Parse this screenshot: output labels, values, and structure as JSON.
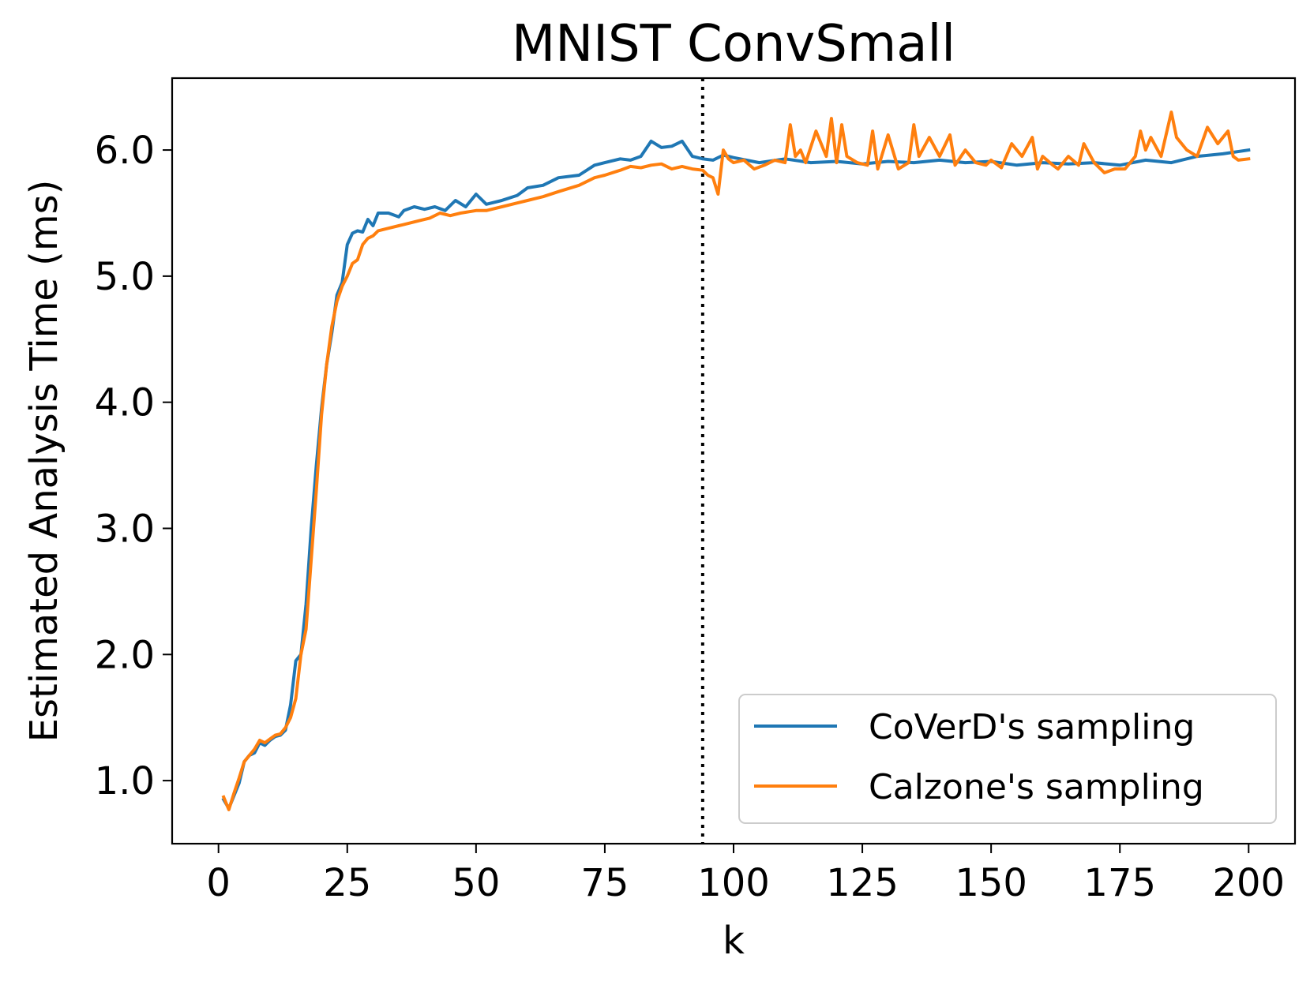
{
  "chart_data": {
    "type": "line",
    "title": "MNIST ConvSmall",
    "xlabel": "k",
    "ylabel": "Estimated Analysis Time (ms)",
    "xlim": [
      -9,
      209
    ],
    "ylim": [
      0.5,
      6.57
    ],
    "xticks": [
      0,
      25,
      50,
      75,
      100,
      125,
      150,
      175,
      200
    ],
    "yticks": [
      1.0,
      2.0,
      3.0,
      4.0,
      5.0,
      6.0
    ],
    "xtick_labels": [
      "0",
      "25",
      "50",
      "75",
      "100",
      "125",
      "150",
      "175",
      "200"
    ],
    "ytick_labels": [
      "1.0",
      "2.0",
      "3.0",
      "4.0",
      "5.0",
      "6.0"
    ],
    "vline": {
      "x": 94,
      "style": "dotted",
      "color": "#000000"
    },
    "legend_position": "lower-right",
    "series": [
      {
        "name": "CoVerD's sampling",
        "color": "#1f77b4",
        "anchors": [
          [
            1,
            0.85
          ],
          [
            2,
            0.78
          ],
          [
            3,
            0.88
          ],
          [
            4,
            0.98
          ],
          [
            5,
            1.15
          ],
          [
            6,
            1.2
          ],
          [
            7,
            1.22
          ],
          [
            8,
            1.3
          ],
          [
            9,
            1.28
          ],
          [
            10,
            1.32
          ],
          [
            11,
            1.35
          ],
          [
            12,
            1.36
          ],
          [
            13,
            1.4
          ],
          [
            14,
            1.6
          ],
          [
            15,
            1.95
          ],
          [
            16,
            2.0
          ],
          [
            17,
            2.4
          ],
          [
            18,
            3.0
          ],
          [
            19,
            3.5
          ],
          [
            20,
            3.95
          ],
          [
            21,
            4.3
          ],
          [
            22,
            4.55
          ],
          [
            23,
            4.85
          ],
          [
            24,
            4.95
          ],
          [
            25,
            5.25
          ],
          [
            26,
            5.34
          ],
          [
            27,
            5.36
          ],
          [
            28,
            5.35
          ],
          [
            29,
            5.45
          ],
          [
            30,
            5.4
          ],
          [
            31,
            5.5
          ],
          [
            33,
            5.5
          ],
          [
            35,
            5.47
          ],
          [
            36,
            5.52
          ],
          [
            38,
            5.55
          ],
          [
            40,
            5.53
          ],
          [
            42,
            5.55
          ],
          [
            44,
            5.52
          ],
          [
            46,
            5.6
          ],
          [
            48,
            5.55
          ],
          [
            50,
            5.65
          ],
          [
            52,
            5.57
          ],
          [
            55,
            5.6
          ],
          [
            58,
            5.64
          ],
          [
            60,
            5.7
          ],
          [
            63,
            5.72
          ],
          [
            66,
            5.78
          ],
          [
            70,
            5.8
          ],
          [
            73,
            5.88
          ],
          [
            75,
            5.9
          ],
          [
            78,
            5.93
          ],
          [
            80,
            5.92
          ],
          [
            82,
            5.95
          ],
          [
            84,
            6.07
          ],
          [
            86,
            6.02
          ],
          [
            88,
            6.03
          ],
          [
            90,
            6.07
          ],
          [
            92,
            5.95
          ],
          [
            94,
            5.93
          ],
          [
            96,
            5.92
          ],
          [
            98,
            5.96
          ],
          [
            100,
            5.94
          ],
          [
            105,
            5.9
          ],
          [
            110,
            5.93
          ],
          [
            115,
            5.9
          ],
          [
            120,
            5.91
          ],
          [
            125,
            5.89
          ],
          [
            130,
            5.91
          ],
          [
            135,
            5.9
          ],
          [
            140,
            5.92
          ],
          [
            145,
            5.9
          ],
          [
            150,
            5.91
          ],
          [
            155,
            5.88
          ],
          [
            160,
            5.9
          ],
          [
            165,
            5.89
          ],
          [
            170,
            5.9
          ],
          [
            175,
            5.88
          ],
          [
            180,
            5.92
          ],
          [
            185,
            5.9
          ],
          [
            190,
            5.95
          ],
          [
            195,
            5.97
          ],
          [
            200,
            6.0
          ]
        ]
      },
      {
        "name": "Calzone's sampling",
        "color": "#ff7f0e",
        "anchors": [
          [
            1,
            0.87
          ],
          [
            2,
            0.77
          ],
          [
            3,
            0.9
          ],
          [
            4,
            1.02
          ],
          [
            5,
            1.15
          ],
          [
            6,
            1.2
          ],
          [
            7,
            1.25
          ],
          [
            8,
            1.32
          ],
          [
            9,
            1.3
          ],
          [
            10,
            1.33
          ],
          [
            11,
            1.36
          ],
          [
            12,
            1.37
          ],
          [
            13,
            1.42
          ],
          [
            14,
            1.5
          ],
          [
            15,
            1.65
          ],
          [
            16,
            2.0
          ],
          [
            17,
            2.2
          ],
          [
            18,
            2.75
          ],
          [
            19,
            3.3
          ],
          [
            20,
            3.9
          ],
          [
            21,
            4.3
          ],
          [
            22,
            4.6
          ],
          [
            23,
            4.8
          ],
          [
            24,
            4.92
          ],
          [
            25,
            5.0
          ],
          [
            26,
            5.1
          ],
          [
            27,
            5.13
          ],
          [
            28,
            5.25
          ],
          [
            29,
            5.3
          ],
          [
            30,
            5.32
          ],
          [
            31,
            5.36
          ],
          [
            33,
            5.38
          ],
          [
            35,
            5.4
          ],
          [
            37,
            5.42
          ],
          [
            39,
            5.44
          ],
          [
            41,
            5.46
          ],
          [
            43,
            5.5
          ],
          [
            45,
            5.48
          ],
          [
            47,
            5.5
          ],
          [
            50,
            5.52
          ],
          [
            52,
            5.52
          ],
          [
            55,
            5.55
          ],
          [
            58,
            5.58
          ],
          [
            60,
            5.6
          ],
          [
            63,
            5.63
          ],
          [
            66,
            5.67
          ],
          [
            70,
            5.72
          ],
          [
            73,
            5.78
          ],
          [
            75,
            5.8
          ],
          [
            78,
            5.84
          ],
          [
            80,
            5.87
          ],
          [
            82,
            5.86
          ],
          [
            84,
            5.88
          ],
          [
            86,
            5.89
          ],
          [
            88,
            5.85
          ],
          [
            90,
            5.87
          ],
          [
            92,
            5.85
          ],
          [
            94,
            5.84
          ],
          [
            95,
            5.8
          ],
          [
            96,
            5.78
          ],
          [
            97,
            5.65
          ],
          [
            98,
            6.0
          ],
          [
            99,
            5.93
          ],
          [
            100,
            5.9
          ],
          [
            102,
            5.92
          ],
          [
            104,
            5.85
          ],
          [
            106,
            5.88
          ],
          [
            108,
            5.92
          ],
          [
            110,
            5.9
          ],
          [
            111,
            6.2
          ],
          [
            112,
            5.95
          ],
          [
            113,
            6.0
          ],
          [
            114,
            5.9
          ],
          [
            116,
            6.15
          ],
          [
            118,
            5.95
          ],
          [
            119,
            6.25
          ],
          [
            120,
            5.9
          ],
          [
            121,
            6.2
          ],
          [
            122,
            5.95
          ],
          [
            124,
            5.9
          ],
          [
            126,
            5.88
          ],
          [
            127,
            6.15
          ],
          [
            128,
            5.85
          ],
          [
            130,
            6.12
          ],
          [
            132,
            5.85
          ],
          [
            134,
            5.9
          ],
          [
            135,
            6.2
          ],
          [
            136,
            5.95
          ],
          [
            138,
            6.1
          ],
          [
            140,
            5.95
          ],
          [
            142,
            6.12
          ],
          [
            143,
            5.88
          ],
          [
            145,
            6.0
          ],
          [
            147,
            5.9
          ],
          [
            149,
            5.88
          ],
          [
            150,
            5.92
          ],
          [
            152,
            5.86
          ],
          [
            154,
            6.05
          ],
          [
            156,
            5.95
          ],
          [
            158,
            6.1
          ],
          [
            159,
            5.85
          ],
          [
            160,
            5.95
          ],
          [
            162,
            5.88
          ],
          [
            163,
            5.85
          ],
          [
            165,
            5.95
          ],
          [
            167,
            5.88
          ],
          [
            168,
            6.05
          ],
          [
            170,
            5.9
          ],
          [
            172,
            5.82
          ],
          [
            174,
            5.85
          ],
          [
            176,
            5.85
          ],
          [
            178,
            5.95
          ],
          [
            179,
            6.15
          ],
          [
            180,
            6.0
          ],
          [
            181,
            6.1
          ],
          [
            183,
            5.95
          ],
          [
            185,
            6.3
          ],
          [
            186,
            6.1
          ],
          [
            188,
            6.0
          ],
          [
            190,
            5.95
          ],
          [
            192,
            6.18
          ],
          [
            194,
            6.05
          ],
          [
            196,
            6.15
          ],
          [
            197,
            5.95
          ],
          [
            198,
            5.92
          ],
          [
            200,
            5.93
          ]
        ]
      }
    ]
  }
}
